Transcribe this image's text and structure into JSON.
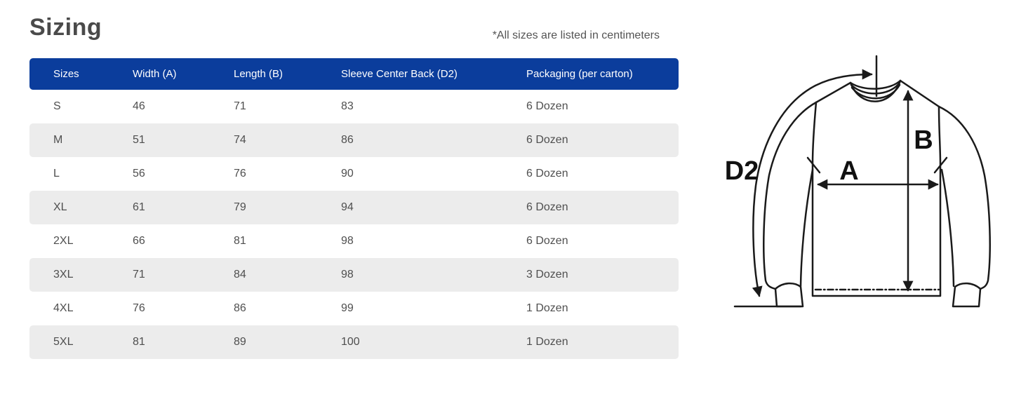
{
  "page": {
    "title": "Sizing",
    "note": "*All sizes are listed in centimeters"
  },
  "table": {
    "columns": [
      "Sizes",
      "Width (A)",
      "Length (B)",
      "Sleeve Center Back (D2)",
      "Packaging (per carton)"
    ],
    "rows": [
      [
        "S",
        "46",
        "71",
        "83",
        "6 Dozen"
      ],
      [
        "M",
        "51",
        "74",
        "86",
        "6 Dozen"
      ],
      [
        "L",
        "56",
        "76",
        "90",
        "6 Dozen"
      ],
      [
        "XL",
        "61",
        "79",
        "94",
        "6 Dozen"
      ],
      [
        "2XL",
        "66",
        "81",
        "98",
        "6 Dozen"
      ],
      [
        "3XL",
        "71",
        "84",
        "98",
        "3 Dozen"
      ],
      [
        "4XL",
        "76",
        "86",
        "99",
        "1 Dozen"
      ],
      [
        "5XL",
        "81",
        "89",
        "100",
        "1 Dozen"
      ]
    ]
  },
  "diagram": {
    "labels": {
      "d2": "D2",
      "a": "A",
      "b": "B"
    }
  },
  "colors": {
    "header_bg": "#0b3d9c",
    "header_text": "#ffffff",
    "stripe_bg": "#ececec",
    "cell_text": "#4f4f4f",
    "title_text": "#4a4a4a",
    "note_text": "#545454"
  }
}
